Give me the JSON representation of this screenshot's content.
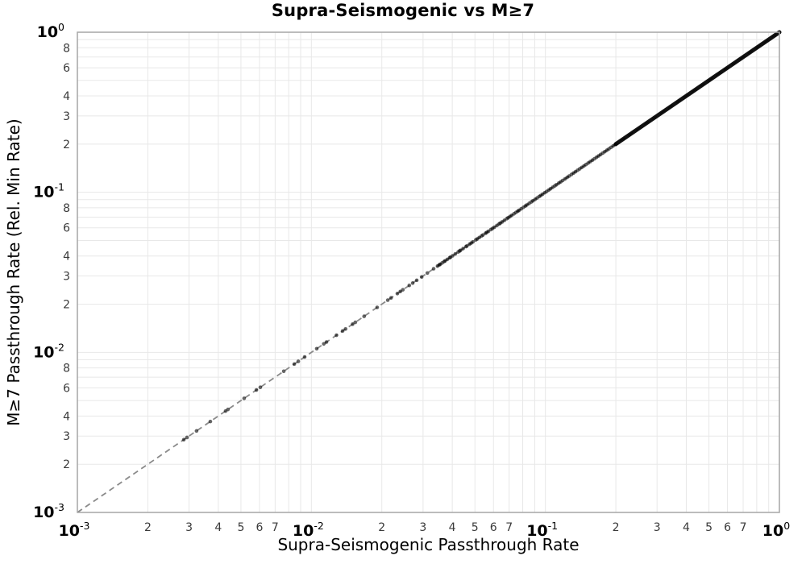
{
  "chart_data": {
    "type": "scatter",
    "title": "Supra-Seismogenic vs M≥7",
    "xlabel": "Supra-Seismogenic Passthrough Rate",
    "ylabel": "M≥7 Passthrough Rate (Rel. Min Rate)",
    "xscale": "log",
    "yscale": "log",
    "xlim": [
      0.001,
      1
    ],
    "ylim": [
      0.001,
      1
    ],
    "grid": true,
    "major_tick_exponents": [
      -3,
      -2,
      -1,
      0
    ],
    "x_minor_labeled_subs": [
      2,
      3,
      4,
      5,
      6,
      7
    ],
    "y_minor_labeled_subs": [
      2,
      3,
      4,
      6,
      8
    ],
    "grid_subs": [
      2,
      3,
      4,
      5,
      6,
      7,
      8,
      9
    ],
    "relation": "all points lie on the identity line y = x",
    "reference_line": {
      "shape": "identity",
      "from": 0.001,
      "to": 1.0,
      "style": "dashed"
    },
    "identity_points_x": [
      0.00285,
      0.00294,
      0.00323,
      0.0037,
      0.0043,
      0.0044,
      0.00516,
      0.00582,
      0.00605,
      0.00762,
      0.00845,
      0.00879,
      0.00936,
      0.01054,
      0.0113,
      0.0116,
      0.0128,
      0.0136,
      0.014,
      0.015,
      0.0154,
      0.0168,
      0.0191,
      0.0212,
      0.0219,
      0.0233,
      0.024,
      0.0246,
      0.0262,
      0.0271,
      0.0282,
      0.0296,
      0.0313,
      0.0333,
      0.0346,
      0.0352,
      0.0355,
      0.0362,
      0.0369,
      0.0373,
      0.0381,
      0.039,
      0.0393,
      0.0401,
      0.0412,
      0.0424,
      0.043,
      0.0434,
      0.0445,
      0.0458,
      0.0462,
      0.0474,
      0.0482,
      0.049,
      0.0504,
      0.0511,
      0.0522,
      0.0534,
      0.0541,
      0.0555,
      0.0562,
      0.0571,
      0.0585,
      0.0594,
      0.0605,
      0.0621,
      0.0634,
      0.0641,
      0.0653,
      0.0668,
      0.0684,
      0.0693,
      0.0705,
      0.0718,
      0.0734,
      0.0748,
      0.0762,
      0.0771,
      0.0788,
      0.0805,
      0.0821,
      0.0833,
      0.0852,
      0.087,
      0.0884,
      0.0903,
      0.0922,
      0.0941,
      0.0955,
      0.0972,
      0.0994,
      0.1012,
      0.1033,
      0.1052,
      0.1075,
      0.1097,
      0.1115,
      0.1141,
      0.1163,
      0.1185,
      0.1212,
      0.1239,
      0.1263,
      0.1292,
      0.1318,
      0.1345,
      0.1374,
      0.1402,
      0.1431,
      0.1462,
      0.1491,
      0.1523,
      0.1554,
      0.1587,
      0.1619,
      0.1653,
      0.1687,
      0.1722,
      0.1758,
      0.1794,
      0.1831,
      0.1869,
      0.1908,
      0.1947,
      0.1988
    ],
    "dense_identity_band": {
      "from": 0.2,
      "to": 1.0,
      "note": "points overlap into a solid black band up to (1,1)"
    },
    "marker": {
      "radius": 2.3,
      "opacity": 0.6
    },
    "colors": {
      "marker": "#000000",
      "reference_line": "#8a8a8a",
      "grid": "#e8e8e8",
      "spine": "#a6a6a6",
      "text": "#000000",
      "minor_tick_text": "#3a3a3a"
    }
  }
}
